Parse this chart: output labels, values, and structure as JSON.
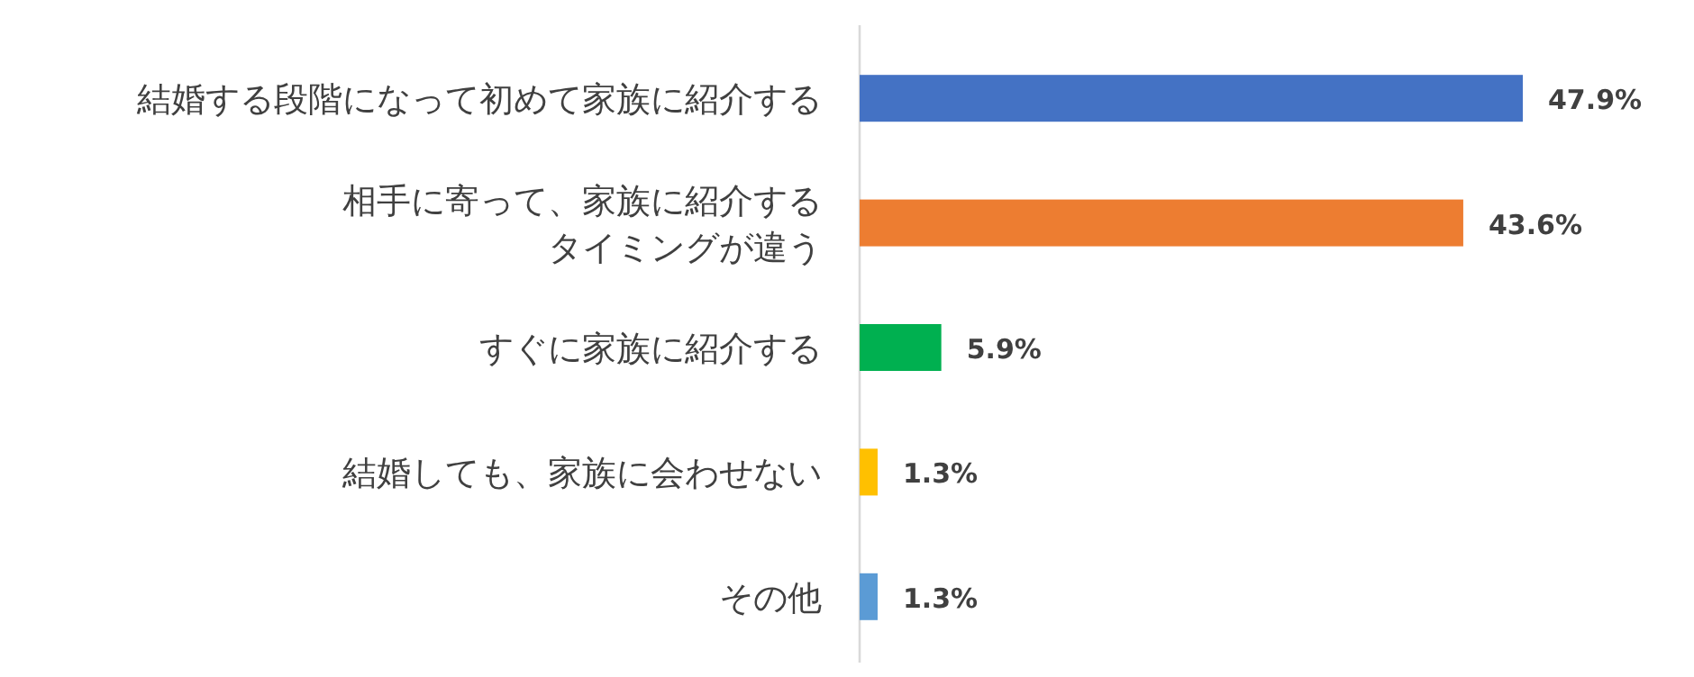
{
  "chart_data": {
    "type": "bar",
    "orientation": "horizontal",
    "categories": [
      "結婚する段階になって初めて家族に紹介する",
      "相手に寄って、家族に紹介するタイミングが違う",
      "すぐに家族に紹介する",
      "結婚しても、家族に会わせない",
      "その他"
    ],
    "values": [
      47.9,
      43.6,
      5.9,
      1.3,
      1.3
    ],
    "colors": [
      "#4472c4",
      "#ed7d31",
      "#00b050",
      "#ffc000",
      "#5b9bd5"
    ],
    "data_labels": true,
    "value_labels": [
      "47.9%",
      "43.6%",
      "5.9%",
      "1.3%",
      "1.3%"
    ]
  }
}
